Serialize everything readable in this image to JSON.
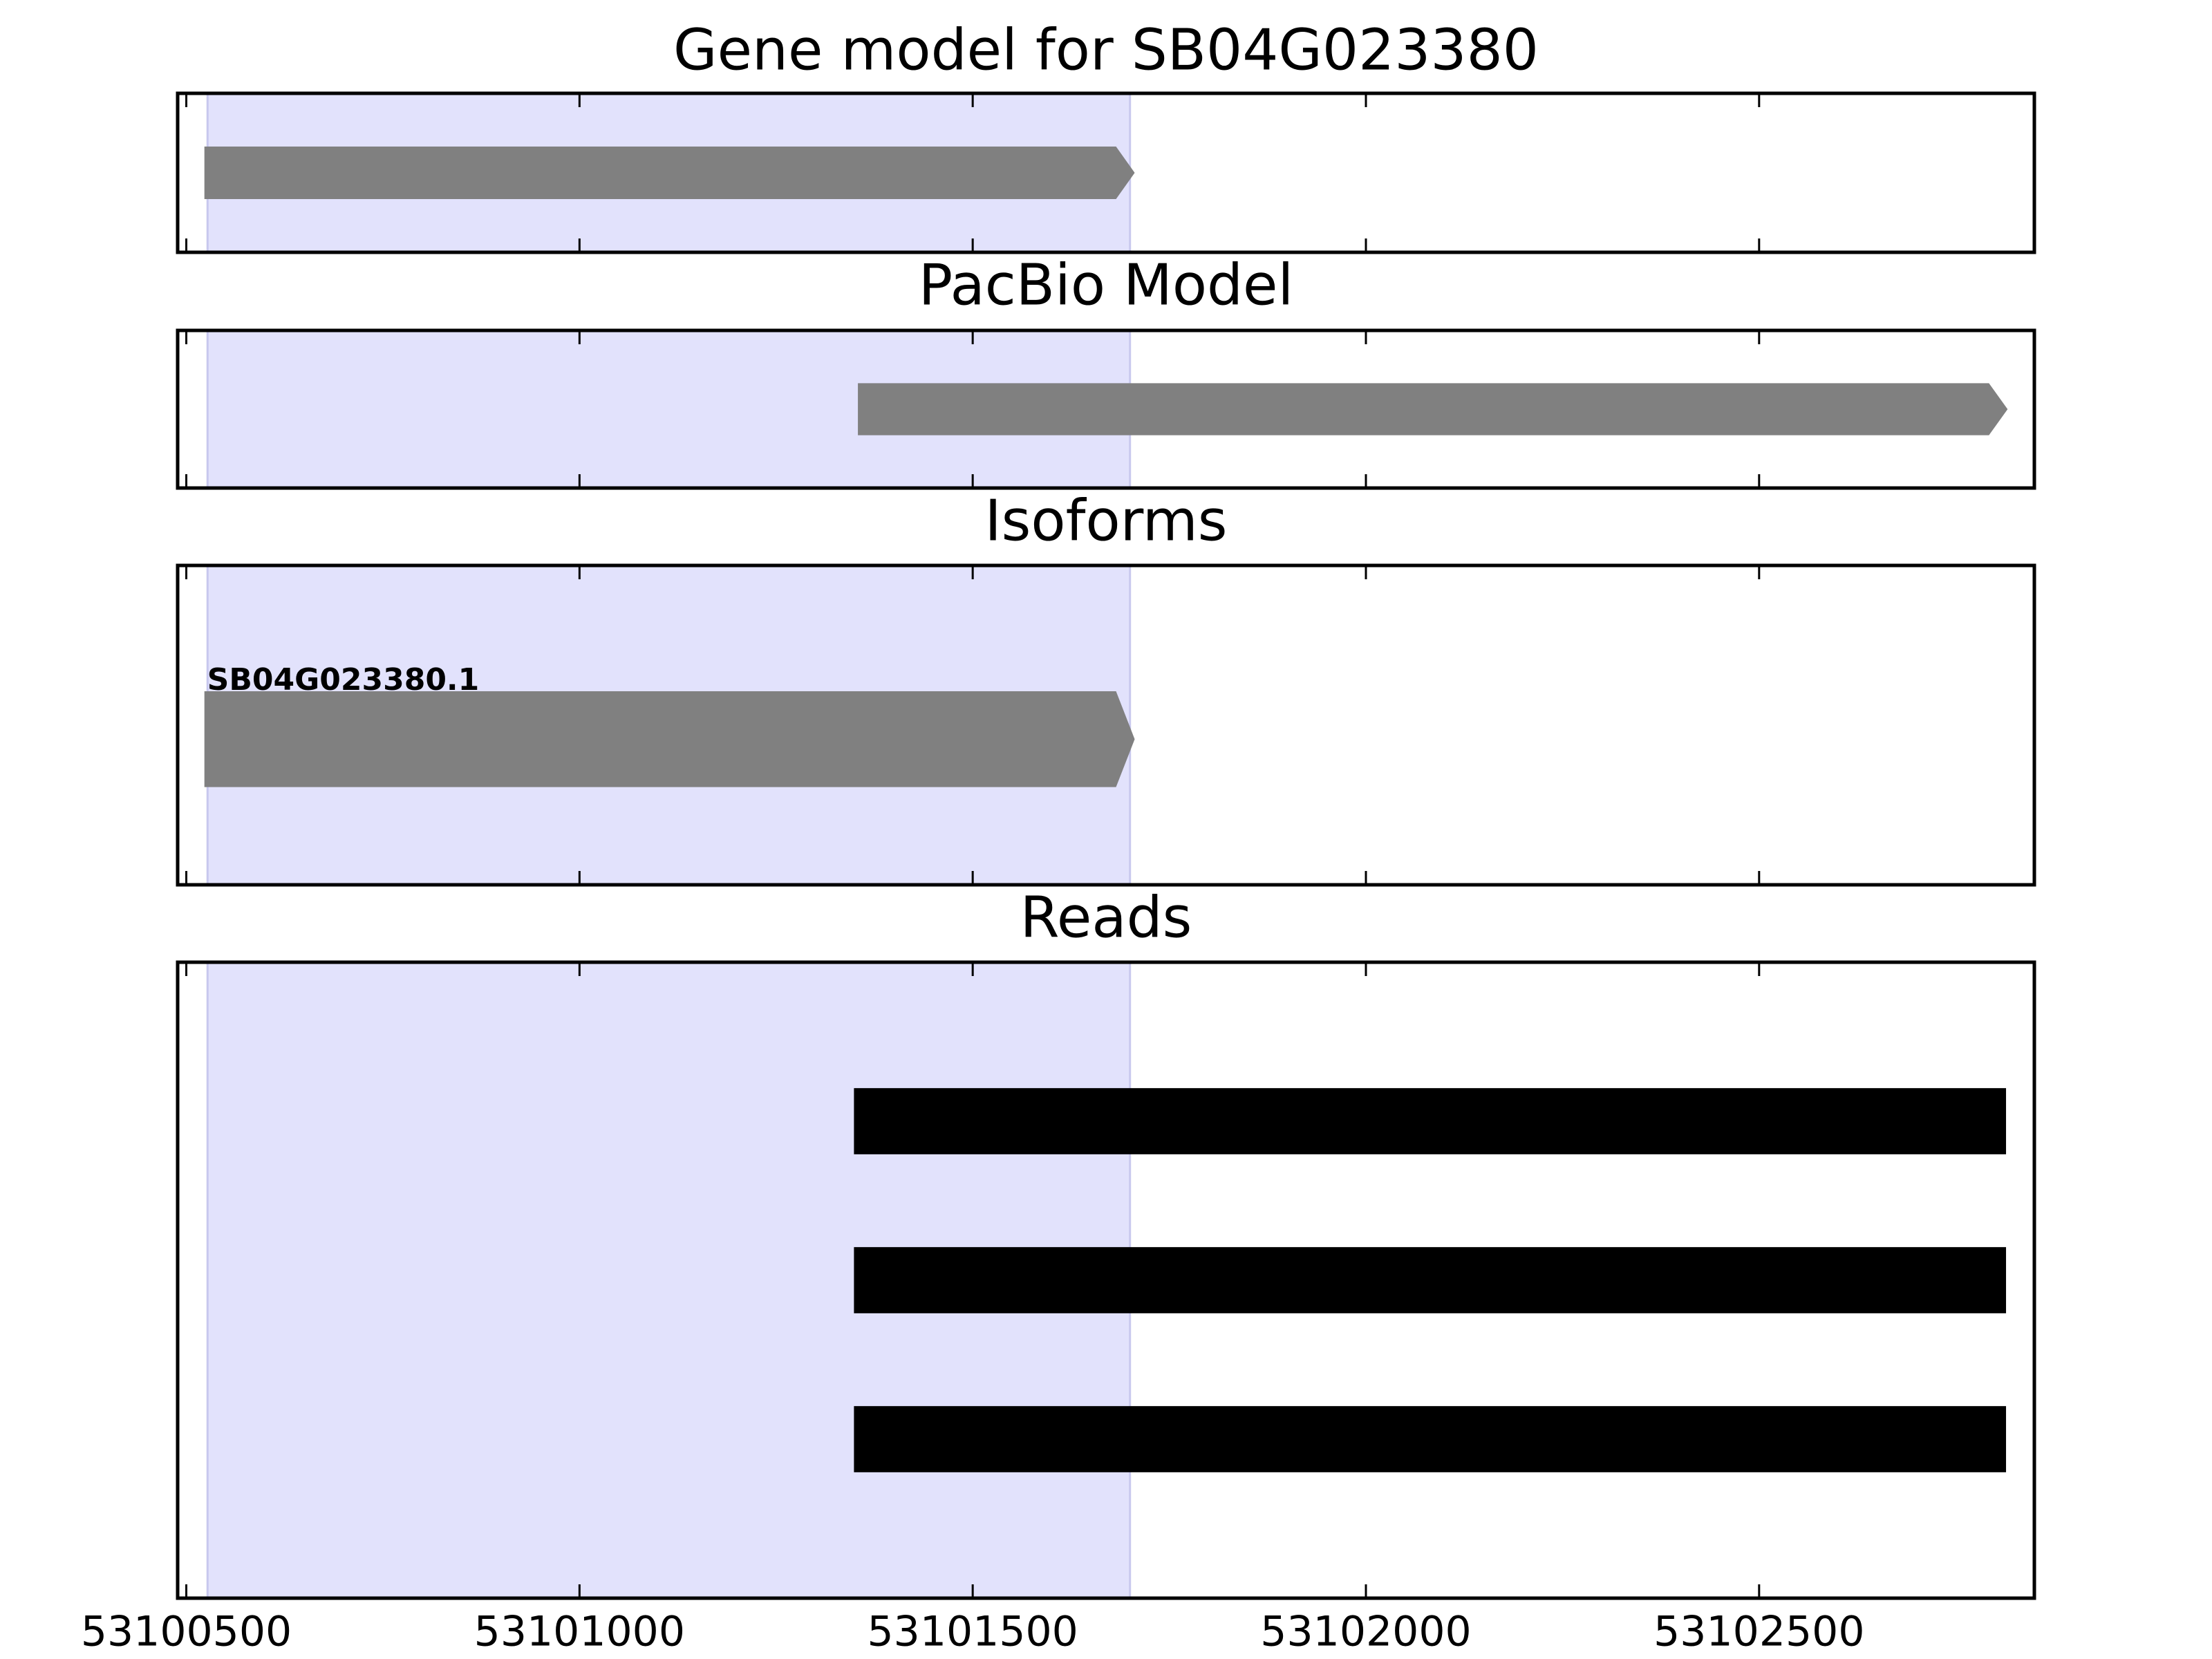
{
  "chart_data": [
    {
      "type": "gene",
      "title": "Gene model for SB04G023380",
      "xlim": [
        53100489,
        53102850
      ],
      "xticks": [
        53100500,
        53101000,
        53101500,
        53102000,
        53102500
      ],
      "highlight": [
        53100527,
        53101700
      ],
      "highlight_color": "#e2e2fc",
      "color": "#808080",
      "features": [
        {
          "start": 53100523,
          "end": 53101706
        }
      ]
    },
    {
      "type": "gene",
      "title": "PacBio Model",
      "xlim": [
        53100489,
        53102850
      ],
      "xticks": [
        53100500,
        53101000,
        53101500,
        53102000,
        53102500
      ],
      "highlight": [
        53100527,
        53101700
      ],
      "highlight_color": "#e2e2fc",
      "color": "#808080",
      "features": [
        {
          "start": 53101354,
          "end": 53102816
        }
      ]
    },
    {
      "type": "gene",
      "title": "Isoforms",
      "xlim": [
        53100489,
        53102850
      ],
      "xticks": [
        53100500,
        53101000,
        53101500,
        53102000,
        53102500
      ],
      "highlight": [
        53100527,
        53101700
      ],
      "highlight_color": "#e2e2fc",
      "color": "#808080",
      "features": [
        {
          "name": "SB04G023380.1",
          "start": 53100523,
          "end": 53101706
        }
      ]
    },
    {
      "type": "reads",
      "title": "Reads",
      "xlim": [
        53100489,
        53102850
      ],
      "xticks": [
        53100500,
        53101000,
        53101500,
        53102000,
        53102500
      ],
      "highlight": [
        53100527,
        53101700
      ],
      "highlight_color": "#e2e2fc",
      "color": "#000000",
      "features": [
        {
          "start": 53101349,
          "end": 53102814
        },
        {
          "start": 53101349,
          "end": 53102814
        },
        {
          "start": 53101349,
          "end": 53102814
        }
      ]
    }
  ]
}
